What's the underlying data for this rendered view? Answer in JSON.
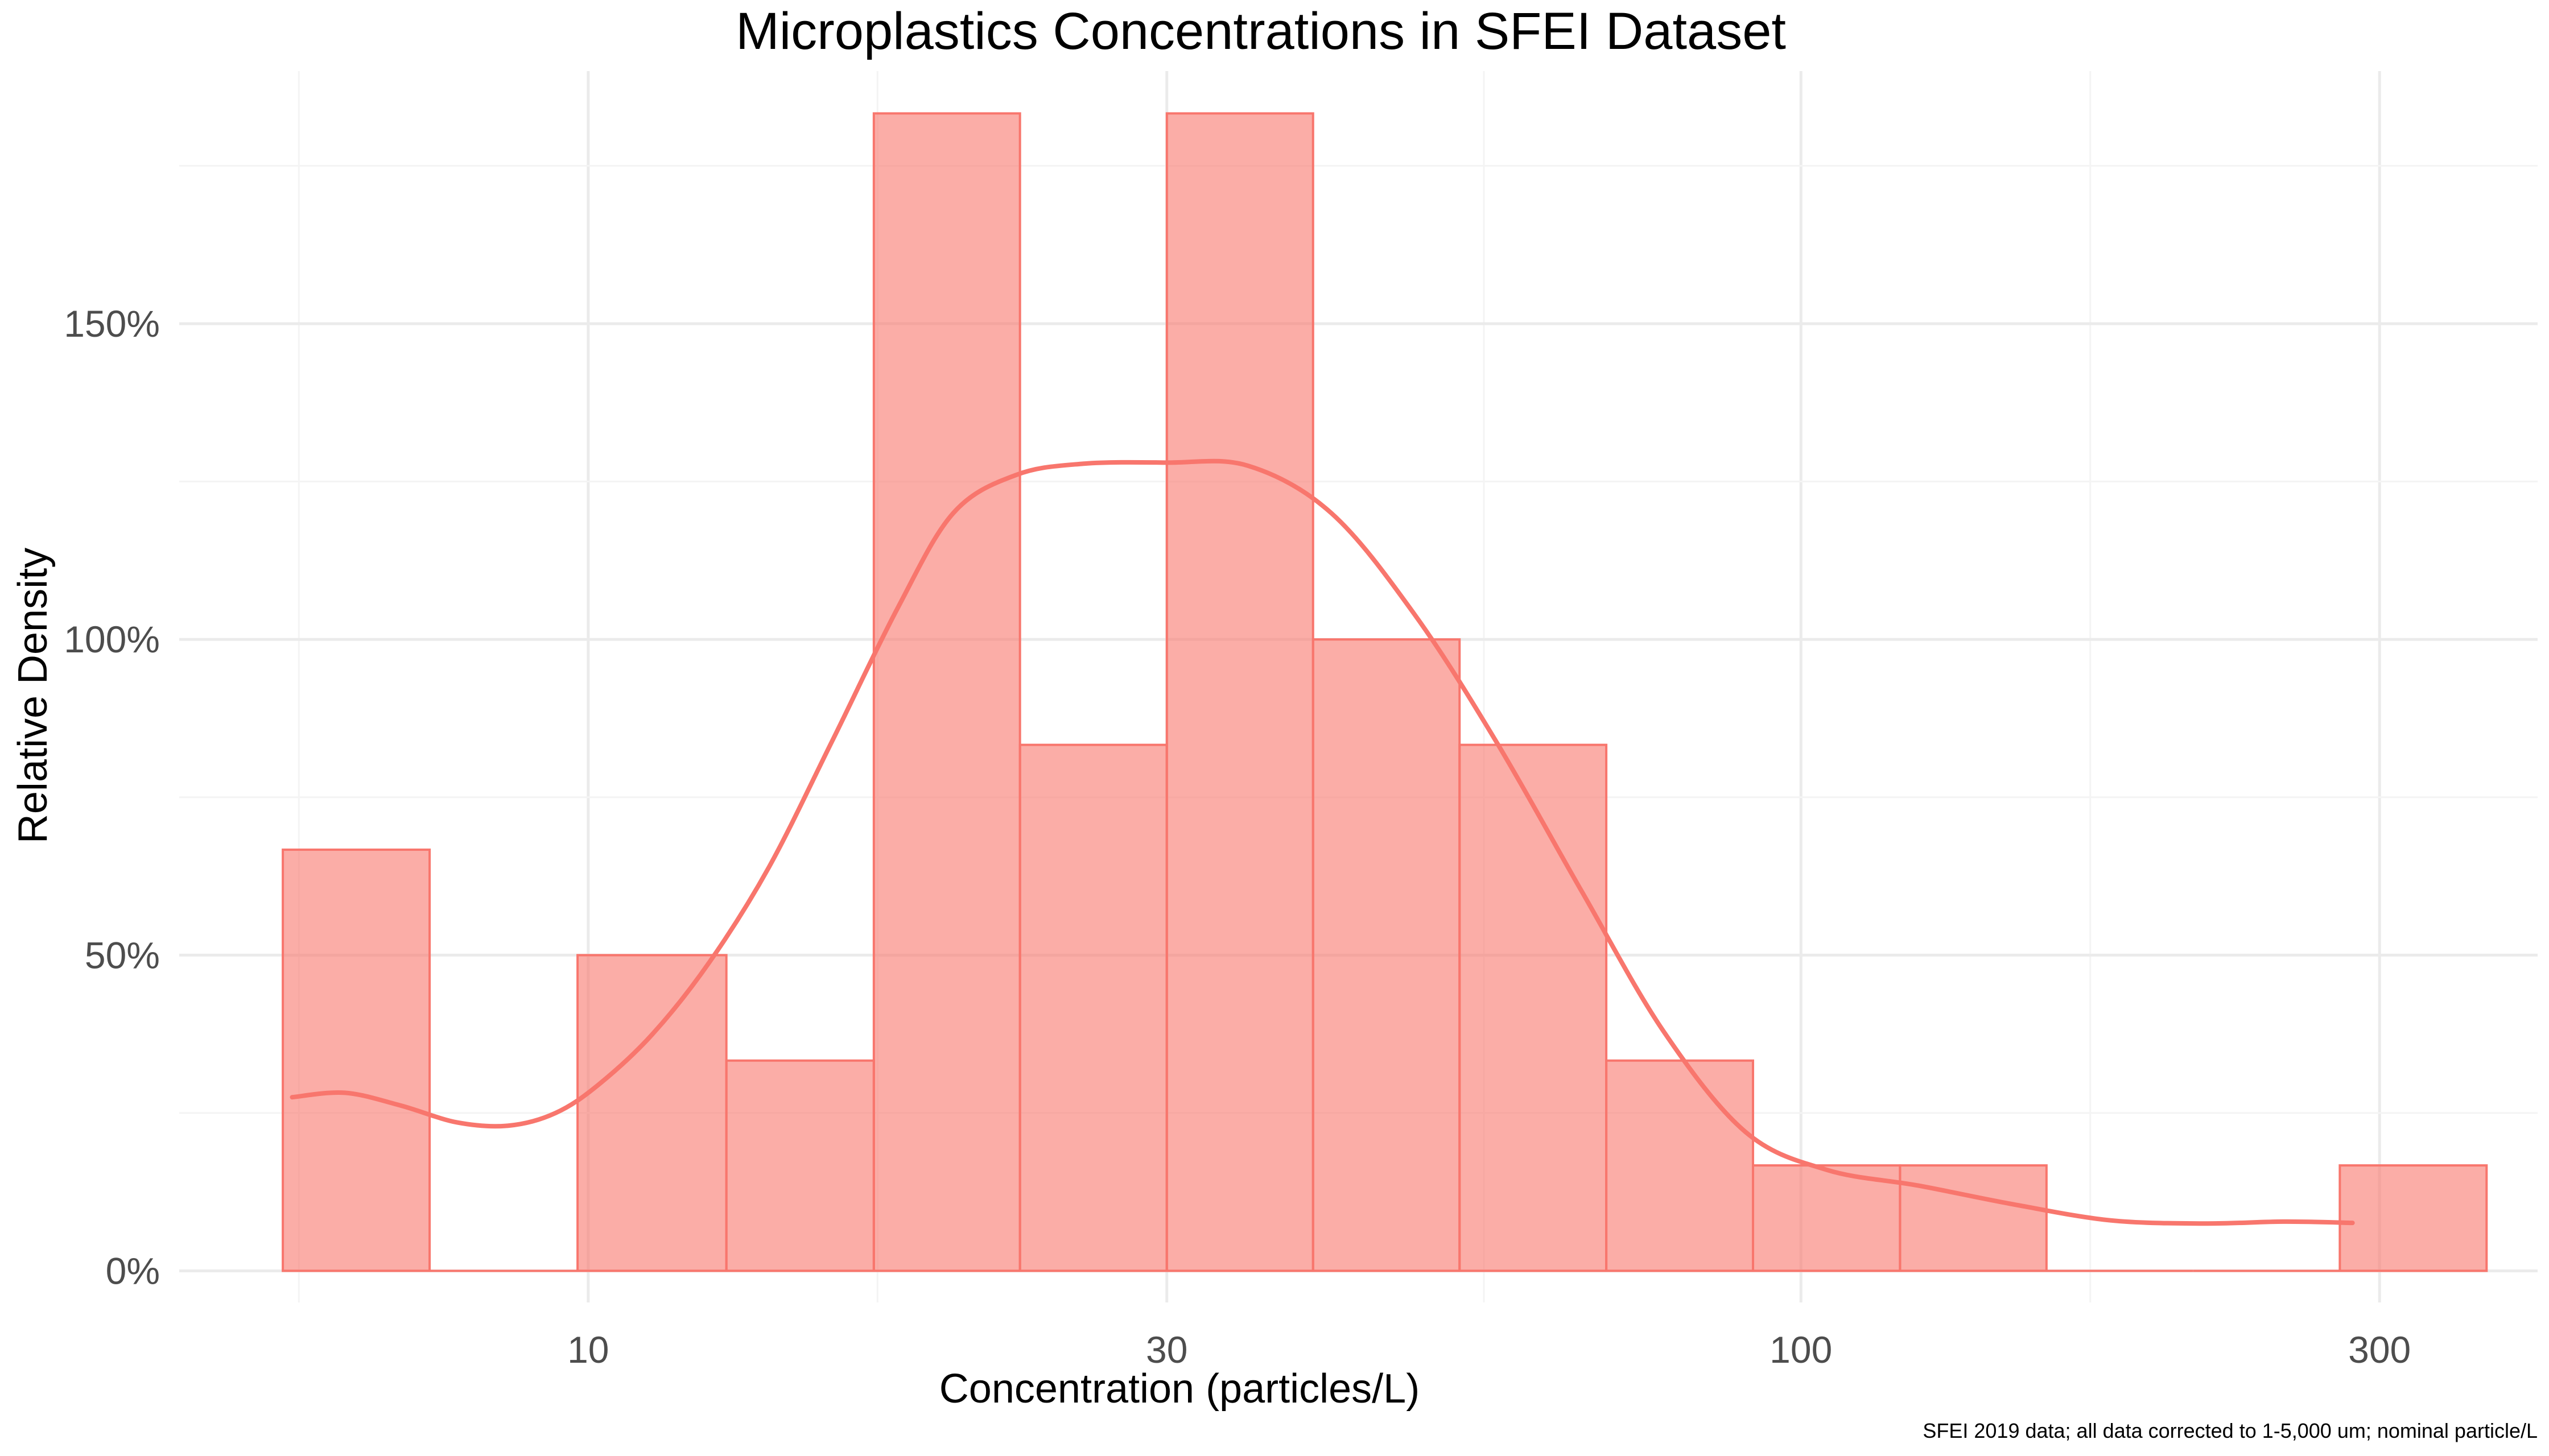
{
  "chart_data": {
    "type": "bar",
    "title": "Microplastics Concentrations in SFEI Dataset",
    "xlabel": "Concentration (particles/L)",
    "ylabel": "Relative Density",
    "caption": "SFEI 2019 data; all data corrected to 1-5,000 um; nominal particle/L",
    "x_scale": "log10",
    "xlim": [
      4.6,
      405
    ],
    "ylim": [
      -0.05,
      1.9
    ],
    "x_ticks": [
      10,
      30,
      100,
      300
    ],
    "x_tick_labels": [
      "10",
      "30",
      "100",
      "300"
    ],
    "y_ticks": [
      0,
      0.5,
      1.0,
      1.5
    ],
    "y_tick_labels": [
      "0%",
      "50%",
      "100%",
      "150%"
    ],
    "grid": true,
    "legend": "none",
    "colors": {
      "bar_fill": "#F8766D",
      "bar_fill_opacity": 0.6,
      "bar_outline": "#F8766D",
      "curve": "#F8766D"
    },
    "bins": [
      {
        "x0": 5.6,
        "x1": 7.4,
        "value": 0.667
      },
      {
        "x0": 7.4,
        "x1": 9.8,
        "value": 0.0
      },
      {
        "x0": 9.8,
        "x1": 13.0,
        "value": 0.5
      },
      {
        "x0": 13.0,
        "x1": 17.2,
        "value": 0.333
      },
      {
        "x0": 17.2,
        "x1": 22.7,
        "value": 1.833
      },
      {
        "x0": 22.7,
        "x1": 30.0,
        "value": 0.833
      },
      {
        "x0": 30.0,
        "x1": 39.6,
        "value": 1.833
      },
      {
        "x0": 39.6,
        "x1": 52.3,
        "value": 1.0
      },
      {
        "x0": 52.3,
        "x1": 69.1,
        "value": 0.833
      },
      {
        "x0": 69.1,
        "x1": 91.3,
        "value": 0.333
      },
      {
        "x0": 91.3,
        "x1": 120.7,
        "value": 0.167
      },
      {
        "x0": 120.7,
        "x1": 159.4,
        "value": 0.167
      },
      {
        "x0": 159.4,
        "x1": 210.6,
        "value": 0.0
      },
      {
        "x0": 210.6,
        "x1": 278.2,
        "value": 0.0
      },
      {
        "x0": 278.2,
        "x1": 367.6,
        "value": 0.167
      }
    ],
    "density_curve": {
      "x": [
        5.7,
        6.3,
        7.0,
        7.8,
        8.6,
        9.4,
        10.2,
        11.3,
        12.6,
        14.1,
        15.9,
        18.0,
        20.0,
        22.5,
        25.5,
        30.0,
        35.0,
        41.0,
        48.0,
        56.0,
        66.0,
        77.0,
        90.0,
        105.0,
        125.0,
        150.0,
        180.0,
        215.0,
        250.0,
        285.0
      ],
      "y": [
        0.275,
        0.282,
        0.262,
        0.235,
        0.23,
        0.25,
        0.295,
        0.375,
        0.49,
        0.64,
        0.84,
        1.05,
        1.2,
        1.26,
        1.278,
        1.28,
        1.275,
        1.2,
        1.04,
        0.84,
        0.6,
        0.38,
        0.22,
        0.16,
        0.135,
        0.105,
        0.08,
        0.075,
        0.078,
        0.076
      ]
    }
  }
}
